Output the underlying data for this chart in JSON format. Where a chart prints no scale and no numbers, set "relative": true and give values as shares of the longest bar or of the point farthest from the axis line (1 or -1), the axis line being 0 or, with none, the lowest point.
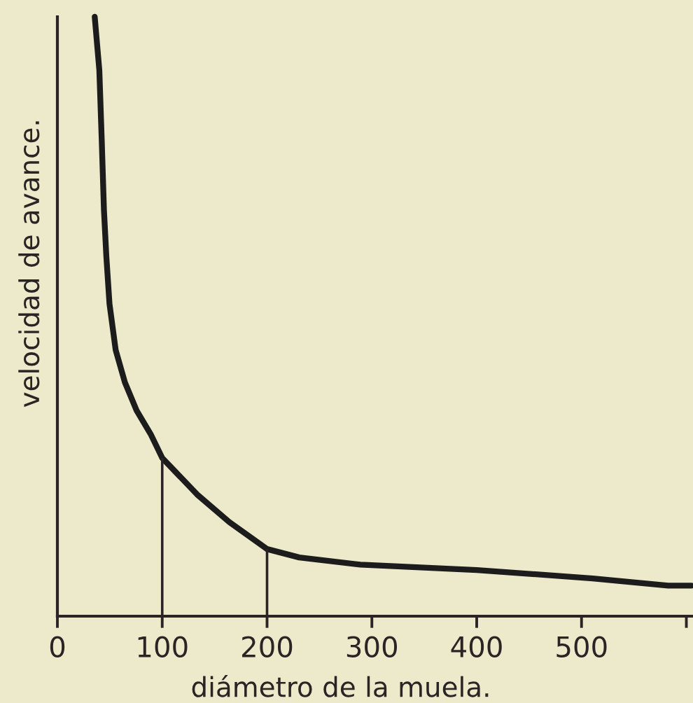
{
  "chart_data": {
    "type": "line",
    "xlabel": "diámetro de la muela.",
    "ylabel": "velocidad de avance.",
    "relative": true,
    "series": [
      {
        "color": "#1c1c1c",
        "x": [
          35.6,
          40,
          42.3,
          44.4,
          46.7,
          49.7,
          55.6,
          64.4,
          75.6,
          88.9,
          100,
          133.3,
          164,
          200,
          230.7,
          289,
          400,
          510.7,
          582.7,
          605
        ],
        "values": [
          1.0,
          0.911,
          0.794,
          0.678,
          0.6,
          0.521,
          0.444,
          0.39,
          0.343,
          0.304,
          0.264,
          0.203,
          0.157,
          0.112,
          0.098,
          0.086,
          0.077,
          0.063,
          0.051,
          0.051
        ]
      }
    ],
    "xlim": [
      0,
      605
    ],
    "xticks": [
      0,
      100,
      200,
      300,
      400,
      500,
      {
        "value": 600,
        "label": null
      }
    ],
    "ref_lines": [
      {
        "axis": "x",
        "value": 100,
        "color": "#2a2424"
      },
      {
        "axis": "x",
        "value": 200,
        "color": "#2a2424"
      }
    ]
  }
}
